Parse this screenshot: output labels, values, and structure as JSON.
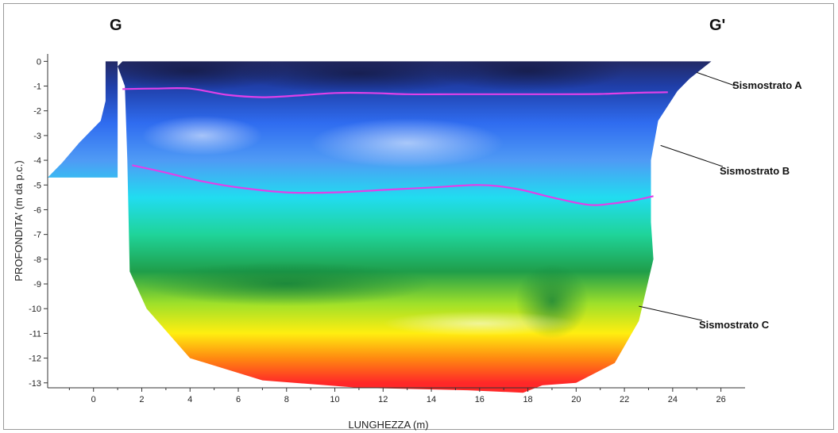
{
  "chart_data": {
    "type": "heatmap",
    "title": "",
    "xlabel": "LUNGHEZZA (m)",
    "ylabel": "PROFONDITA' (m da p.c.)",
    "xlim": [
      -1.9,
      27
    ],
    "ylim": [
      -13.2,
      0.3
    ],
    "x_ticks": [
      0,
      2,
      4,
      6,
      8,
      10,
      12,
      14,
      16,
      18,
      20,
      22,
      24,
      26
    ],
    "y_ticks": [
      0,
      -1,
      -2,
      -3,
      -4,
      -5,
      -6,
      -7,
      -8,
      -9,
      -10,
      -11,
      -12,
      -13
    ],
    "section_labels": {
      "start": "G",
      "end": "G'"
    },
    "color_scale": {
      "stops": [
        {
          "depth": 0,
          "color": "#232a66"
        },
        {
          "depth": -1,
          "color": "#1f3ea8"
        },
        {
          "depth": -2.5,
          "color": "#2f6cf0"
        },
        {
          "depth": -4,
          "color": "#4f9af5"
        },
        {
          "depth": -5.5,
          "color": "#21dcf0"
        },
        {
          "depth": -7,
          "color": "#1fd49a"
        },
        {
          "depth": -8.5,
          "color": "#1f9e4a"
        },
        {
          "depth": -9.8,
          "color": "#9ee02a"
        },
        {
          "depth": -11,
          "color": "#ffee10"
        },
        {
          "depth": -12,
          "color": "#ff8a10"
        },
        {
          "depth": -13,
          "color": "#ff2828"
        }
      ]
    },
    "profile_outline": {
      "left_block": [
        [
          -1.9,
          -4.7
        ],
        [
          -1.3,
          -4.1
        ],
        [
          -0.6,
          -3.3
        ],
        [
          0.3,
          -2.4
        ],
        [
          0.5,
          -1.6
        ],
        [
          0.5,
          0
        ],
        [
          1.0,
          0
        ],
        [
          1.0,
          -4.7
        ]
      ],
      "main_body": [
        [
          1.0,
          -0.2
        ],
        [
          1.2,
          0
        ],
        [
          25.6,
          0
        ],
        [
          24.7,
          -0.7
        ],
        [
          24.2,
          -1.2
        ],
        [
          23.4,
          -2.4
        ],
        [
          23.1,
          -4.0
        ],
        [
          23.1,
          -6.5
        ],
        [
          23.2,
          -8.0
        ],
        [
          22.6,
          -10.5
        ],
        [
          21.6,
          -12.2
        ],
        [
          20.0,
          -13.0
        ],
        [
          18.6,
          -13.1
        ],
        [
          17.8,
          -13.4
        ],
        [
          15.5,
          -13.3
        ],
        [
          11.0,
          -13.2
        ],
        [
          7.0,
          -12.9
        ],
        [
          4.0,
          -12.0
        ],
        [
          2.2,
          -10.0
        ],
        [
          1.5,
          -8.5
        ],
        [
          1.4,
          -4.0
        ],
        [
          1.3,
          -1.0
        ]
      ]
    },
    "series": [
      {
        "name": "",
        "x": [
          1.2,
          2.5,
          4,
          5.5,
          7,
          8.5,
          10,
          11.5,
          13,
          15,
          17,
          19,
          21,
          22.5,
          23.8
        ],
        "y": [
          -1.12,
          -1.1,
          -1.1,
          -1.35,
          -1.45,
          -1.38,
          -1.28,
          -1.28,
          -1.33,
          -1.33,
          -1.33,
          -1.33,
          -1.32,
          -1.27,
          -1.25
        ],
        "color": "#e040e8"
      },
      {
        "name": "",
        "x": [
          1.6,
          3,
          4.5,
          6,
          8,
          10,
          12,
          14,
          16,
          17.5,
          19,
          20.5,
          21.5,
          22.5,
          23.2
        ],
        "y": [
          -4.2,
          -4.5,
          -4.85,
          -5.1,
          -5.3,
          -5.3,
          -5.2,
          -5.1,
          -5.0,
          -5.15,
          -5.5,
          -5.8,
          -5.75,
          -5.6,
          -5.45
        ],
        "color": "#e040e8"
      }
    ],
    "annotations": [
      {
        "text": "Sismostrato A",
        "point": [
          25.0,
          -0.45
        ]
      },
      {
        "text": "Sismostrato B",
        "point": [
          23.5,
          -3.4
        ]
      },
      {
        "text": "Sismostrato C",
        "point": [
          22.6,
          -9.9
        ]
      }
    ]
  }
}
